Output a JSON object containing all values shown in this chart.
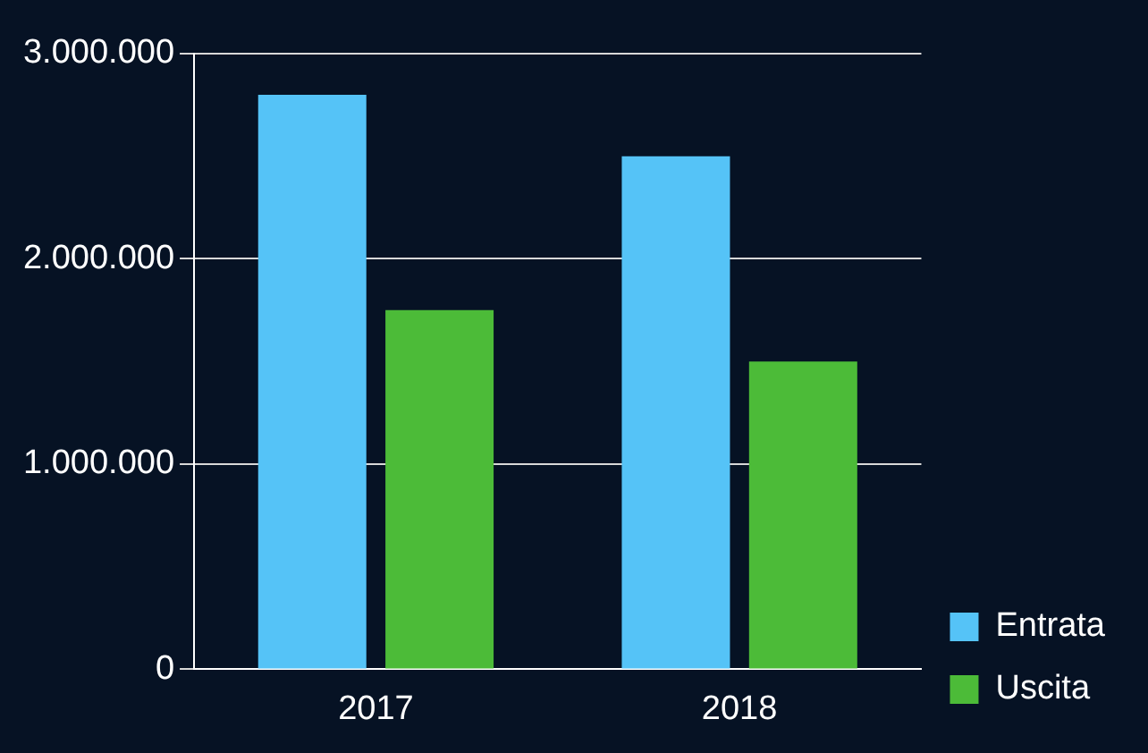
{
  "chart_data": {
    "type": "bar",
    "categories": [
      "2017",
      "2018"
    ],
    "series": [
      {
        "name": "Entrata",
        "color": "#55c3f7",
        "values": [
          2800000,
          2500000
        ]
      },
      {
        "name": "Uscita",
        "color": "#4cbb38",
        "values": [
          1750000,
          1500000
        ]
      }
    ],
    "ylim": [
      0,
      3000000
    ],
    "yticks": [
      0,
      {
        "value": 1000000,
        "label": "1.000.000"
      },
      {
        "value": 2000000,
        "label": "2.000.000"
      },
      {
        "value": 3000000,
        "label": "3.000.000"
      }
    ],
    "grid": "y",
    "legend": "right"
  }
}
